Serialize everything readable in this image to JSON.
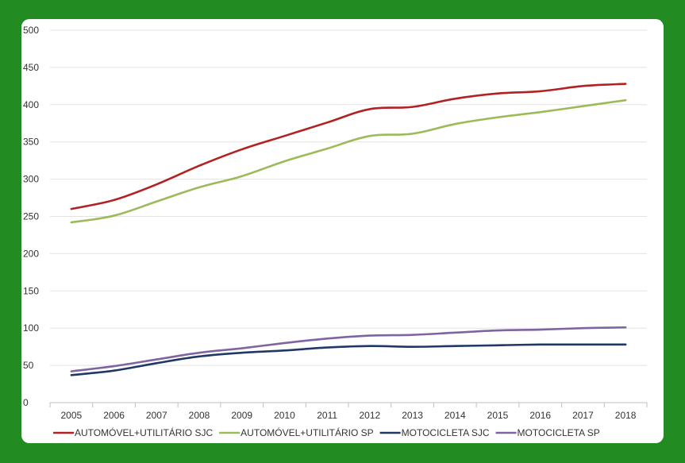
{
  "chart_data": {
    "type": "line",
    "title": "",
    "xlabel": "",
    "ylabel": "",
    "categories": [
      "2005",
      "2006",
      "2007",
      "2008",
      "2009",
      "2010",
      "2011",
      "2012",
      "2013",
      "2014",
      "2015",
      "2016",
      "2017",
      "2018"
    ],
    "ylim": [
      0,
      500
    ],
    "yticks": [
      0,
      50,
      100,
      150,
      200,
      250,
      300,
      350,
      400,
      450,
      500
    ],
    "grid": true,
    "legend_position": "bottom",
    "series": [
      {
        "name": "AUTOMÓVEL+UTILITÁRIO SJC",
        "color": "#b22222",
        "values": [
          260,
          272,
          293,
          318,
          340,
          358,
          376,
          394,
          397,
          408,
          415,
          418,
          425,
          428
        ]
      },
      {
        "name": "AUTOMÓVEL+UTILITÁRIO SP",
        "color": "#9bbb59",
        "values": [
          242,
          251,
          270,
          289,
          304,
          324,
          341,
          358,
          361,
          374,
          383,
          390,
          398,
          406
        ]
      },
      {
        "name": "MOTOCICLETA SJC",
        "color": "#1f3864",
        "values": [
          37,
          43,
          53,
          62,
          67,
          70,
          74,
          76,
          75,
          76,
          77,
          78,
          78,
          78
        ]
      },
      {
        "name": "MOTOCICLETA SP",
        "color": "#8064a2",
        "values": [
          42,
          49,
          58,
          67,
          73,
          80,
          86,
          90,
          91,
          94,
          97,
          98,
          100,
          101
        ]
      }
    ]
  }
}
